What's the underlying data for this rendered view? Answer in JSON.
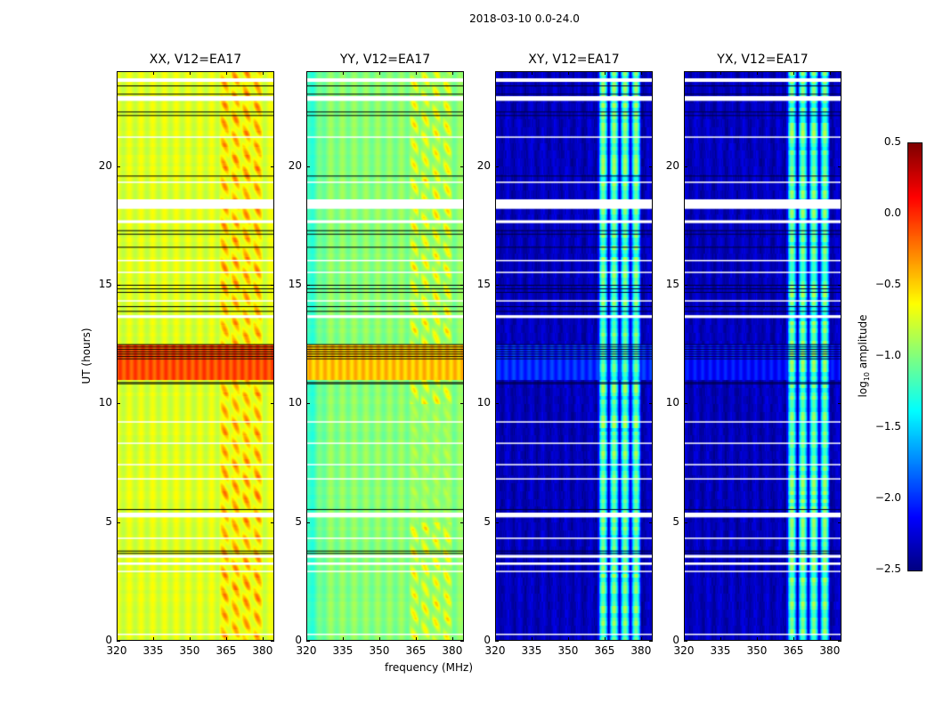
{
  "chart_data": {
    "type": "heatmap",
    "suptitle": "2018-03-10 0.0-24.0",
    "xlabel": "frequency (MHz)",
    "ylabel": "UT (hours)",
    "xlim": [
      320,
      384.8
    ],
    "ylim": [
      0,
      24
    ],
    "xticks": [
      320,
      335,
      350,
      365,
      380
    ],
    "yticks": [
      0,
      5,
      10,
      15,
      20
    ],
    "colormap": "jet",
    "colorbar": {
      "label_main": "log",
      "label_sub": "10",
      "label_rest": " amplitude",
      "range": [
        -2.5,
        0.5
      ],
      "ticks": [
        -2.5,
        -2.0,
        -1.5,
        -1.0,
        -0.5,
        0.0,
        0.5
      ],
      "tick_labels": [
        "−2.5",
        "−2.0",
        "−1.5",
        "−1.0",
        "−0.5",
        "0.0",
        "0.5"
      ]
    },
    "panels": [
      {
        "title": "XX, V12=EA17",
        "base_level": -0.75,
        "rfi_level": -0.15,
        "night_level": -0.1
      },
      {
        "title": "YY, V12=EA17",
        "base_level": -1.0,
        "rfi_level": -0.45,
        "night_level": -0.45
      },
      {
        "title": "XY, V12=EA17",
        "base_level": -2.4,
        "rfi_level": -0.8,
        "night_level": -2.0
      },
      {
        "title": "YX, V12=EA17",
        "base_level": -2.4,
        "rfi_level": -0.8,
        "night_level": -2.1
      }
    ],
    "rfi_band_mhz": [
      362,
      380
    ],
    "elevated_ut_hours": [
      11.0,
      12.5
    ],
    "flagged_gaps_ut_hours": [
      [
        23.55,
        23.7
      ],
      [
        22.75,
        22.95
      ],
      [
        18.2,
        18.6
      ],
      [
        17.6,
        17.72
      ],
      [
        13.6,
        13.72
      ],
      [
        5.2,
        5.4
      ],
      [
        3.5,
        3.62
      ],
      [
        3.2,
        3.3
      ],
      [
        0.25,
        0.3
      ],
      [
        8.3,
        8.35
      ],
      [
        6.8,
        6.85
      ],
      [
        19.3,
        19.35
      ],
      [
        21.2,
        21.25
      ],
      [
        14.3,
        14.35
      ],
      [
        16.0,
        16.05
      ],
      [
        15.5,
        15.55
      ],
      [
        9.2,
        9.25
      ],
      [
        7.4,
        7.45
      ],
      [
        4.3,
        4.35
      ],
      [
        2.9,
        2.95
      ]
    ],
    "black_lines_ut_hours": [
      23.4,
      23.05,
      22.3,
      22.15,
      19.6,
      17.3,
      17.15,
      16.6,
      15.0,
      14.85,
      14.7,
      14.1,
      13.9,
      12.5,
      12.4,
      12.3,
      12.2,
      12.1,
      12.0,
      11.9,
      10.9,
      10.85,
      5.55,
      3.8,
      3.7
    ]
  }
}
